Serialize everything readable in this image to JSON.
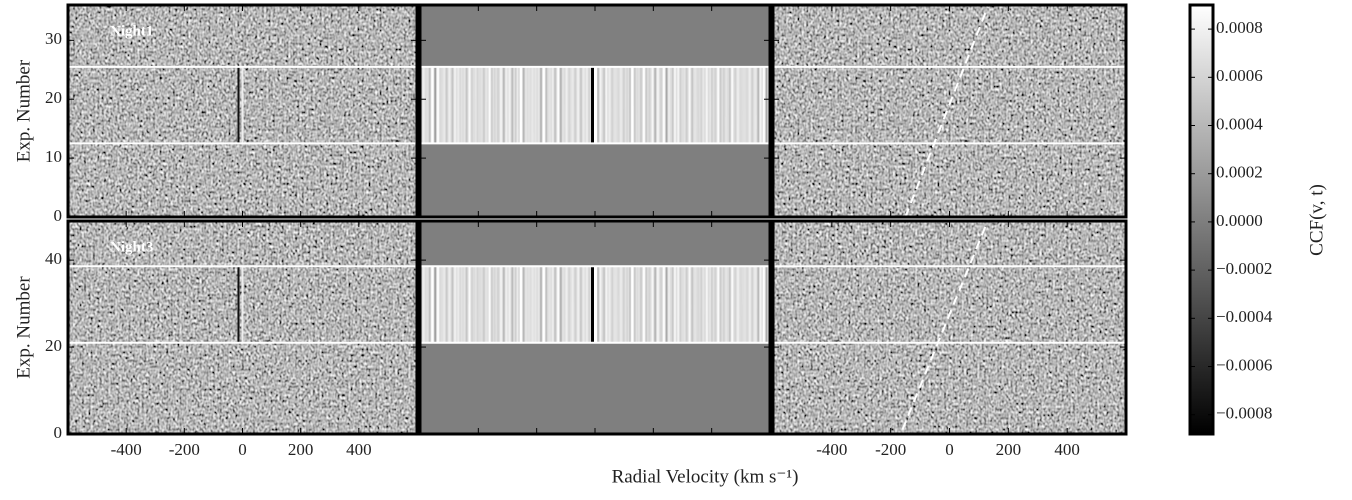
{
  "chart_data": {
    "type": "heatmap",
    "xlabel": "Radial Velocity (km s⁻¹)",
    "xlim": [
      -600,
      600
    ],
    "xticks": [
      -400,
      -200,
      0,
      200,
      400
    ],
    "rows": [
      {
        "label": "Night1",
        "ylabel": "Exp. Number",
        "ylim": [
          0,
          36
        ],
        "yticks": [
          0,
          10,
          20,
          30
        ],
        "in_transit": [
          12.5,
          25.5
        ],
        "trail": {
          "x": [
            -150,
            130
          ],
          "y": [
            0,
            35.7
          ]
        }
      },
      {
        "label": "Night3",
        "ylabel": "Exp. Number",
        "ylim": [
          0,
          49
        ],
        "yticks": [
          0,
          20,
          40
        ],
        "in_transit": [
          21,
          38.6
        ],
        "trail": {
          "x": [
            -160,
            128
          ],
          "y": [
            1,
            48.7
          ]
        }
      }
    ],
    "colorbar": {
      "label": "CCF(v, t)",
      "lim": [
        -0.00088,
        0.0009
      ],
      "ticks": [
        {
          "value": -0.0008,
          "label": "−0.0008"
        },
        {
          "value": -0.0006,
          "label": "−0.0006"
        },
        {
          "value": -0.0004,
          "label": "−0.0004"
        },
        {
          "value": -0.0002,
          "label": "−0.0002"
        },
        {
          "value": 0,
          "label": "0.0000"
        },
        {
          "value": 0.0002,
          "label": "0.0002"
        },
        {
          "value": 0.0004,
          "label": "0.0004"
        },
        {
          "value": 0.0006,
          "label": "0.0006"
        },
        {
          "value": 0.0008,
          "label": "0.0008"
        }
      ]
    }
  }
}
